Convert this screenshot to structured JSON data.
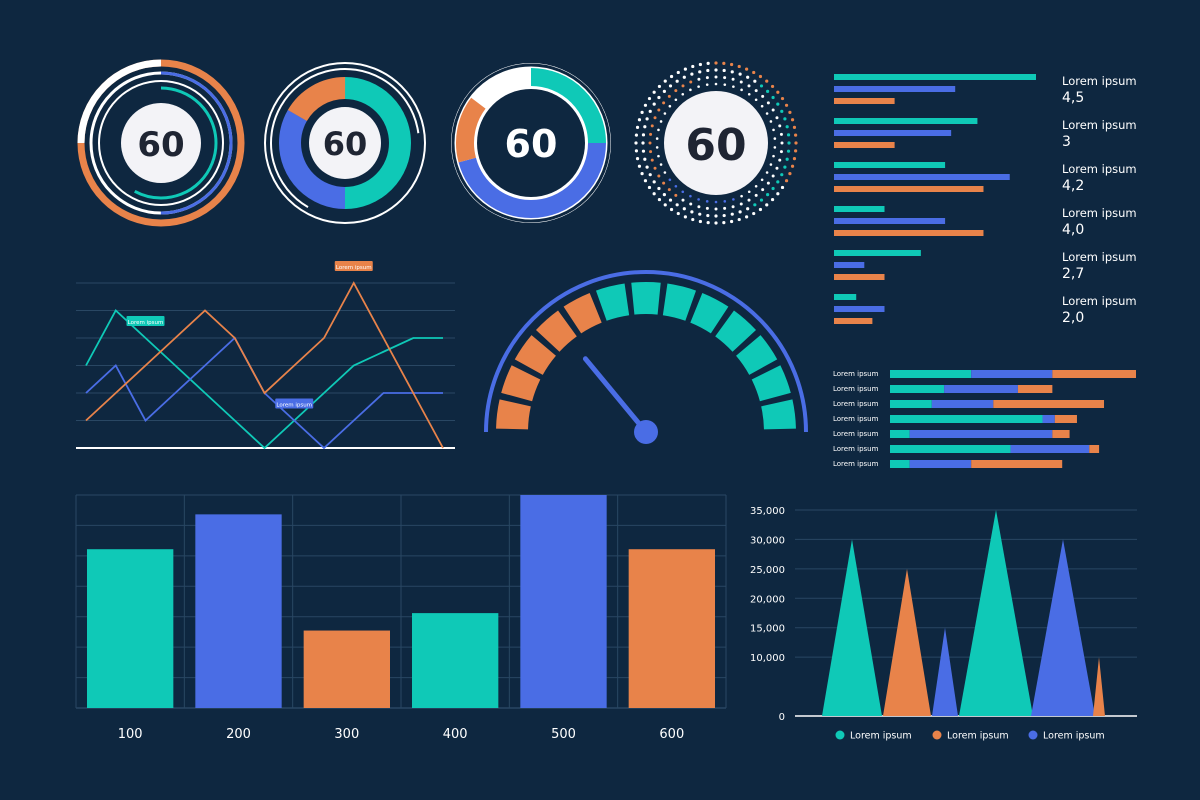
{
  "colors": {
    "background": "#0e2740",
    "teal": "#0fc9b7",
    "blue": "#4a6de5",
    "orange": "#e8834a",
    "white": "#ffffff",
    "grid": "#294763",
    "gauge_center": "#f3f3f7"
  },
  "gauges": [
    {
      "value": "60",
      "style": "concentric-rings"
    },
    {
      "value": "60",
      "style": "segmented-donut"
    },
    {
      "value": "60",
      "style": "thick-donut"
    },
    {
      "value": "60",
      "style": "dotted-rings"
    }
  ],
  "line_chart": {
    "type": "line",
    "annotations": [
      "Lorem ipsum",
      "Lorem ipsum",
      "Lorem ipsum"
    ],
    "x": [
      0,
      1,
      2,
      3,
      4,
      5,
      6,
      7,
      8,
      9,
      10,
      11,
      12
    ],
    "ylim": [
      0,
      6
    ],
    "series": [
      {
        "color": "teal",
        "values": [
          3,
          5,
          4,
          3,
          2,
          1,
          0,
          1,
          2,
          3,
          3.5,
          4,
          4
        ]
      },
      {
        "color": "blue",
        "values": [
          2,
          3,
          1,
          2,
          3,
          4,
          2,
          1,
          0,
          1,
          2,
          2,
          2
        ]
      },
      {
        "color": "orange",
        "values": [
          1,
          2,
          3,
          4,
          5,
          4,
          2,
          3,
          4,
          6,
          4,
          2,
          0
        ]
      }
    ]
  },
  "speedometer": {
    "type": "gauge",
    "segments": 13,
    "segment_colors": [
      "orange",
      "orange",
      "orange",
      "orange",
      "orange",
      "teal",
      "teal",
      "teal",
      "teal",
      "teal",
      "teal",
      "teal",
      "teal"
    ],
    "needle_value": 0.28
  },
  "right_bars": {
    "type": "bar",
    "groups": [
      {
        "label": "Lorem ipsum",
        "value": "4,5",
        "bars": [
          {
            "color": "teal",
            "v": 1.0
          },
          {
            "color": "blue",
            "v": 0.6
          },
          {
            "color": "orange",
            "v": 0.3
          }
        ]
      },
      {
        "label": "Lorem ipsum",
        "value": "3",
        "bars": [
          {
            "color": "teal",
            "v": 0.71
          },
          {
            "color": "blue",
            "v": 0.58
          },
          {
            "color": "orange",
            "v": 0.3
          }
        ]
      },
      {
        "label": "Lorem ipsum",
        "value": "4,2",
        "bars": [
          {
            "color": "teal",
            "v": 0.55
          },
          {
            "color": "blue",
            "v": 0.87
          },
          {
            "color": "orange",
            "v": 0.74
          }
        ]
      },
      {
        "label": "Lorem ipsum",
        "value": "4,0",
        "bars": [
          {
            "color": "teal",
            "v": 0.25
          },
          {
            "color": "blue",
            "v": 0.55
          },
          {
            "color": "orange",
            "v": 0.74
          }
        ]
      },
      {
        "label": "Lorem ipsum",
        "value": "2,7",
        "bars": [
          {
            "color": "teal",
            "v": 0.43
          },
          {
            "color": "blue",
            "v": 0.15
          },
          {
            "color": "orange",
            "v": 0.25
          }
        ]
      },
      {
        "label": "Lorem ipsum",
        "value": "2,0",
        "bars": [
          {
            "color": "teal",
            "v": 0.11
          },
          {
            "color": "blue",
            "v": 0.25
          },
          {
            "color": "orange",
            "v": 0.19
          }
        ]
      }
    ]
  },
  "stacked_bars": {
    "type": "bar",
    "rows": [
      {
        "label": "Lorem ipsum",
        "segments": [
          {
            "color": "teal",
            "v": 33
          },
          {
            "color": "blue",
            "v": 33
          },
          {
            "color": "orange",
            "v": 34
          }
        ]
      },
      {
        "label": "Lorem ipsum",
        "segments": [
          {
            "color": "teal",
            "v": 22
          },
          {
            "color": "blue",
            "v": 30
          },
          {
            "color": "orange",
            "v": 14
          }
        ]
      },
      {
        "label": "Lorem ipsum",
        "segments": [
          {
            "color": "teal",
            "v": 17
          },
          {
            "color": "blue",
            "v": 25
          },
          {
            "color": "orange",
            "v": 45
          }
        ]
      },
      {
        "label": "Lorem ipsum",
        "segments": [
          {
            "color": "teal",
            "v": 62
          },
          {
            "color": "blue",
            "v": 5
          },
          {
            "color": "orange",
            "v": 9
          }
        ]
      },
      {
        "label": "Lorem ipsum",
        "segments": [
          {
            "color": "teal",
            "v": 8
          },
          {
            "color": "blue",
            "v": 58
          },
          {
            "color": "orange",
            "v": 7
          }
        ]
      },
      {
        "label": "Lorem ipsum",
        "segments": [
          {
            "color": "teal",
            "v": 49
          },
          {
            "color": "blue",
            "v": 32
          },
          {
            "color": "orange",
            "v": 4
          }
        ]
      },
      {
        "label": "Lorem ipsum",
        "segments": [
          {
            "color": "teal",
            "v": 8
          },
          {
            "color": "blue",
            "v": 25
          },
          {
            "color": "orange",
            "v": 37
          }
        ]
      }
    ]
  },
  "chart_data": [
    {
      "type": "bar",
      "categories": [
        "100",
        "200",
        "300",
        "400",
        "500",
        "600"
      ],
      "values": [
        82,
        100,
        40,
        49,
        110,
        82
      ],
      "colors": [
        "teal",
        "blue",
        "orange",
        "teal",
        "blue",
        "orange"
      ],
      "ylim": [
        0,
        110
      ],
      "grid": true
    },
    {
      "type": "area",
      "yticks": [
        "0",
        "10,000",
        "15,000",
        "20,000",
        "25,000",
        "30,000",
        "35,000"
      ],
      "ylim": [
        0,
        35000
      ],
      "peaks": [
        {
          "series": 0,
          "value": 30000
        },
        {
          "series": 2,
          "value": 25000
        },
        {
          "series": 1,
          "value": 15000
        },
        {
          "series": 0,
          "value": 35000
        },
        {
          "series": 1,
          "value": 30000
        },
        {
          "series": 2,
          "value": 10000
        }
      ],
      "legend": [
        {
          "name": "Lorem ipsum",
          "color": "teal"
        },
        {
          "name": "Lorem ipsum",
          "color": "orange"
        },
        {
          "name": "Lorem ipsum",
          "color": "blue"
        }
      ],
      "legend_position": "bottom",
      "grid": true
    }
  ]
}
